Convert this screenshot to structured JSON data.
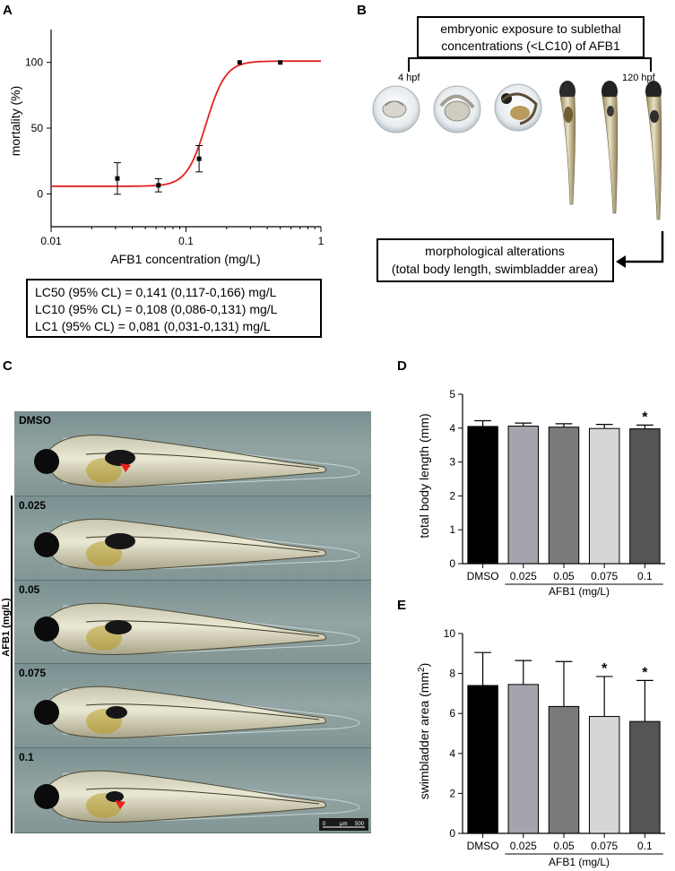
{
  "panels": {
    "a": "A",
    "b": "B",
    "c": "C",
    "d": "D",
    "e": "E"
  },
  "panel_b": {
    "exposure_line1": "embryonic exposure to sublethal",
    "exposure_line2": "concentrations (<LC10) of AFB1",
    "start_label": "4 hpf",
    "end_label": "120 hpf",
    "outcome_line1": "morphological alterations",
    "outcome_line2": "(total body length, swimbladder area)"
  },
  "lc_box": {
    "lc50": "LC50 (95% CL) = 0,141 (0,117-0,166) mg/L",
    "lc10": "LC10 (95% CL) = 0,108 (0,086-0,131) mg/L",
    "lc1": "LC1  (95% CL) = 0,081 (0,031-0,131) mg/L"
  },
  "panel_c": {
    "control_label": "DMSO",
    "group_label": "AFB1 (mg/L)",
    "treated_labels": [
      "0.025",
      "0.05",
      "0.075",
      "0.1"
    ],
    "scale_bar": {
      "start": "0",
      "unit": "µm",
      "end": "500"
    }
  },
  "colors": {
    "curve": "#e32222",
    "arrow": "#e8201a",
    "points": "#000000"
  },
  "chart_data": [
    {
      "type": "scatter",
      "panel": "A",
      "xlabel": "AFB1 concentration (mg/L)",
      "ylabel": "mortality (%)",
      "x_scale": "log",
      "xlim": [
        0.01,
        1
      ],
      "ylim": [
        -25,
        125
      ],
      "x_ticks": [
        0.01,
        0.1,
        1
      ],
      "x_tick_labels": [
        "0.01",
        "0.1",
        "1"
      ],
      "y_ticks": [
        0,
        50,
        100
      ],
      "points": [
        {
          "x": 0.031,
          "y": 11.7,
          "err": 12
        },
        {
          "x": 0.0625,
          "y": 6.5,
          "err": 5
        },
        {
          "x": 0.125,
          "y": 26.7,
          "err": 10
        },
        {
          "x": 0.25,
          "y": 100,
          "err": 0
        },
        {
          "x": 0.5,
          "y": 100,
          "err": 0
        }
      ],
      "fit": {
        "bottom": 5.8,
        "top": 101,
        "lc50": 0.141,
        "hill": 6
      }
    },
    {
      "type": "bar",
      "panel": "D",
      "categories": [
        "DMSO",
        "0.025",
        "0.05",
        "0.075",
        "0.1"
      ],
      "values": [
        4.05,
        4.06,
        4.03,
        3.99,
        3.98
      ],
      "errors": [
        0.17,
        0.09,
        0.1,
        0.12,
        0.11
      ],
      "significance": [
        "",
        "",
        "",
        "",
        "*"
      ],
      "bar_colors": [
        "#000000",
        "#a4a4ac",
        "#7a7a7a",
        "#d6d6d6",
        "#555555"
      ],
      "xlabel": "AFB1 (mg/L)",
      "ylabel": "total body length (mm)",
      "ylim": [
        0,
        5
      ],
      "y_ticks": [
        0,
        1,
        2,
        3,
        4,
        5
      ]
    },
    {
      "type": "bar",
      "panel": "E",
      "categories": [
        "DMSO",
        "0.025",
        "0.05",
        "0.075",
        "0.1"
      ],
      "values": [
        7.4,
        7.45,
        6.35,
        5.85,
        5.6
      ],
      "errors": [
        1.65,
        1.2,
        2.25,
        2.0,
        2.05
      ],
      "significance": [
        "",
        "",
        "",
        "*",
        "*"
      ],
      "bar_colors": [
        "#000000",
        "#a4a4ac",
        "#7a7a7a",
        "#d6d6d6",
        "#555555"
      ],
      "xlabel": "AFB1 (mg/L)",
      "ylabel": "swimbladder area (mm",
      "ylabel_sup": "2",
      "ylabel_end": ")",
      "ylim": [
        0,
        10
      ],
      "y_ticks": [
        0,
        2,
        4,
        6,
        8,
        10
      ]
    }
  ]
}
